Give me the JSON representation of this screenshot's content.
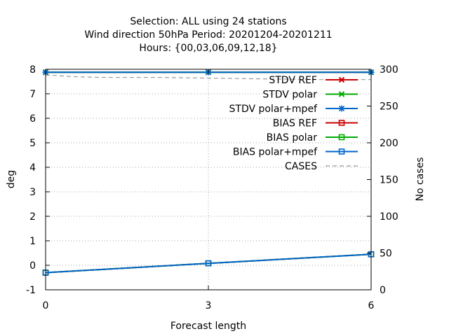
{
  "chart_data": {
    "type": "line",
    "title_lines": [
      "Selection: ALL using    24 stations",
      "Wind direction 50hPa   Period: 20201204-20201211",
      "Hours: {00,03,06,09,12,18}"
    ],
    "xlabel": "Forecast length",
    "ylabel": "deg",
    "y2label": "No cases",
    "x": [
      0,
      3,
      6
    ],
    "xlim": [
      0,
      6
    ],
    "ylim": [
      -1,
      8
    ],
    "y2lim": [
      0,
      300
    ],
    "x_ticks": [
      "0",
      "3",
      "6"
    ],
    "y_ticks": [
      "-1",
      "0",
      "1",
      "2",
      "3",
      "4",
      "5",
      "6",
      "7",
      "8"
    ],
    "y2_ticks": [
      "0",
      "50",
      "100",
      "150",
      "200",
      "250",
      "300"
    ],
    "grid": "dotted at x=3 and y ticks",
    "legend_position": "top-right",
    "series": [
      {
        "name": "STDV REF",
        "axis": "y1",
        "color": "#cc0000",
        "marker": "x",
        "values": [
          7.88,
          7.88,
          7.88
        ]
      },
      {
        "name": "STDV polar",
        "axis": "y1",
        "color": "#00aa00",
        "marker": "x",
        "values": [
          7.88,
          7.88,
          7.88
        ]
      },
      {
        "name": "STDV polar+mpef",
        "axis": "y1",
        "color": "#0066cc",
        "marker": "asterisk",
        "values": [
          7.88,
          7.88,
          7.88
        ]
      },
      {
        "name": "BIAS REF",
        "axis": "y1",
        "color": "#cc0000",
        "marker": "square",
        "values": [
          -0.3,
          0.08,
          0.45
        ]
      },
      {
        "name": "BIAS polar",
        "axis": "y1",
        "color": "#00aa00",
        "marker": "square",
        "values": [
          -0.3,
          0.08,
          0.45
        ]
      },
      {
        "name": "BIAS polar+mpef",
        "axis": "y1",
        "color": "#0066cc",
        "marker": "square",
        "values": [
          -0.3,
          0.08,
          0.45
        ]
      },
      {
        "name": "CASES",
        "axis": "y2",
        "color": "#999999",
        "dash": true,
        "x": [
          0,
          0.1,
          0.5,
          1,
          2,
          3,
          4,
          5,
          6
        ],
        "values": [
          292,
          292,
          290,
          289,
          289,
          288,
          287,
          286,
          286
        ]
      }
    ]
  }
}
